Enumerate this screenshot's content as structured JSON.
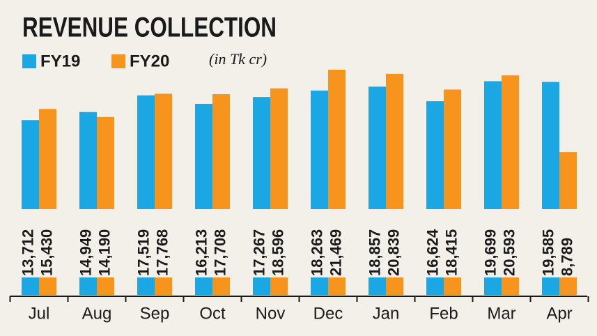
{
  "chart_data": {
    "type": "bar",
    "title": "REVENUE COLLECTION",
    "subtitle": "(in Tk cr)",
    "categories": [
      "Jul",
      "Aug",
      "Sep",
      "Oct",
      "Nov",
      "Dec",
      "Jan",
      "Feb",
      "Mar",
      "Apr"
    ],
    "series": [
      {
        "name": "FY19",
        "color": "#1ba7e3",
        "values": [
          13712,
          14949,
          17519,
          16213,
          17267,
          18263,
          18857,
          16624,
          19699,
          19585
        ],
        "value_labels": [
          "13,712",
          "14,949",
          "17,519",
          "16,213",
          "17,267",
          "18,263",
          "18,857",
          "16,624",
          "19,699",
          "19,585"
        ]
      },
      {
        "name": "FY20",
        "color": "#f7941e",
        "values": [
          15430,
          14190,
          17768,
          17708,
          18596,
          21469,
          20839,
          18415,
          20593,
          8789
        ],
        "value_labels": [
          "15,430",
          "14,190",
          "17,768",
          "17,708",
          "18,596",
          "21,469",
          "20,839",
          "18,415",
          "20,593",
          "8,789"
        ]
      }
    ]
  }
}
